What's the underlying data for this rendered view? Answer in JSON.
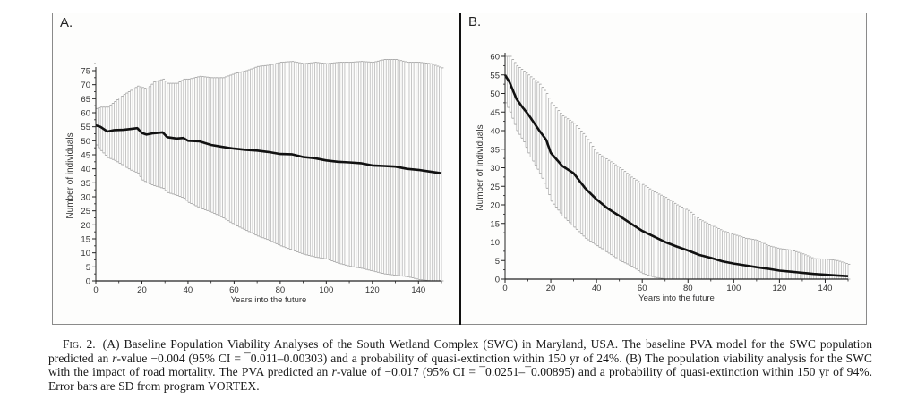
{
  "figure": {
    "panels": [
      "A.",
      "B."
    ],
    "caption": {
      "fig_label": "Fig. 2.",
      "text_parts": [
        "(A) Baseline Population Viability Analyses of the South Wetland Complex (SWC) in Maryland, USA. The baseline PVA model for the SWC population predicted an ",
        "r",
        "-value −0.004 (95% CI = ¯0.011–0.00303) and a probability of quasi-extinction within 150 yr of 24%. (B) The population viability analysis for the SWC with the impact of road mortality. The PVA predicted an ",
        "r",
        "-value of −0.017 (95% CI = ¯0.0251–¯0.00895) and a probability of quasi-extinction within 150 yr of 94%. Error bars are SD from program VORTEX."
      ]
    }
  },
  "chart_data": [
    {
      "type": "line",
      "panel": "A.",
      "title": "",
      "xlabel": "Years into the future",
      "ylabel": "Number of individuals",
      "xlim": [
        0,
        150
      ],
      "ylim": [
        0,
        79
      ],
      "xticks": [
        0,
        20,
        40,
        60,
        80,
        100,
        120,
        140
      ],
      "yticks": [
        0,
        5,
        10,
        15,
        20,
        25,
        30,
        35,
        40,
        45,
        50,
        55,
        60,
        65,
        70,
        75
      ],
      "grid": false,
      "error_bars": "SD",
      "series": [
        {
          "name": "mean",
          "x": [
            0,
            2,
            5,
            8,
            12,
            15,
            18,
            20,
            22,
            25,
            29,
            31,
            35,
            38,
            40,
            45,
            50,
            55,
            60,
            65,
            70,
            75,
            80,
            85,
            90,
            95,
            100,
            105,
            110,
            115,
            120,
            125,
            130,
            135,
            140,
            145,
            150
          ],
          "values": [
            55.5,
            55,
            53.3,
            53.8,
            53.9,
            54.2,
            54.5,
            52.8,
            52.2,
            52.7,
            53,
            51.3,
            50.8,
            51,
            50,
            49.8,
            48.5,
            47.8,
            47.2,
            46.8,
            46.5,
            46,
            45.3,
            45.2,
            44.2,
            43.8,
            43,
            42.5,
            42.3,
            42,
            41.2,
            41,
            40.8,
            40,
            39.6,
            39,
            38.4
          ]
        },
        {
          "name": "upper (mean + SD)",
          "x": [
            0,
            2,
            5,
            8,
            12,
            15,
            18,
            20,
            22,
            25,
            29,
            31,
            35,
            38,
            40,
            45,
            50,
            55,
            60,
            65,
            70,
            75,
            80,
            85,
            90,
            95,
            100,
            105,
            110,
            115,
            120,
            125,
            130,
            135,
            140,
            145,
            150
          ],
          "values": [
            61.5,
            62,
            62,
            64,
            66.5,
            68,
            69.5,
            69,
            68.5,
            71,
            72,
            70.5,
            70.5,
            72,
            72,
            73,
            72.5,
            72.5,
            74,
            75,
            76.5,
            77,
            78,
            78.3,
            77.5,
            78,
            77.5,
            78,
            78,
            78.3,
            78,
            79,
            79,
            78,
            78,
            77.5,
            76
          ]
        },
        {
          "name": "lower (mean - SD)",
          "x": [
            0,
            2,
            5,
            8,
            12,
            15,
            18,
            20,
            22,
            25,
            29,
            31,
            35,
            38,
            40,
            45,
            50,
            55,
            60,
            65,
            70,
            75,
            80,
            85,
            90,
            95,
            100,
            105,
            110,
            115,
            120,
            125,
            130,
            135,
            140,
            145,
            150
          ],
          "values": [
            48.5,
            46.5,
            44,
            43,
            41,
            39.5,
            38.5,
            36,
            35,
            34,
            33,
            31.5,
            30.5,
            29.5,
            28,
            26,
            24.5,
            22.5,
            20,
            18,
            16,
            14.5,
            12.5,
            11,
            9.5,
            8.5,
            7.8,
            6.3,
            5.2,
            4.5,
            3.5,
            2.5,
            2,
            1.5,
            0.5,
            0,
            0
          ]
        }
      ]
    },
    {
      "type": "line",
      "panel": "B.",
      "title": "",
      "xlabel": "Years into the future",
      "ylabel": "Number of individuals",
      "xlim": [
        0,
        150
      ],
      "ylim": [
        0,
        60
      ],
      "xticks": [
        0,
        20,
        40,
        60,
        80,
        100,
        120,
        140
      ],
      "yticks": [
        0,
        5,
        10,
        15,
        20,
        25,
        30,
        35,
        40,
        45,
        50,
        55,
        60
      ],
      "grid": false,
      "error_bars": "SD",
      "series": [
        {
          "name": "mean",
          "x": [
            0,
            2,
            5,
            8,
            10,
            15,
            18,
            20,
            25,
            30,
            35,
            40,
            45,
            50,
            55,
            60,
            65,
            70,
            75,
            80,
            85,
            90,
            95,
            100,
            105,
            110,
            115,
            120,
            125,
            130,
            135,
            140,
            145,
            150
          ],
          "values": [
            55,
            53,
            48.5,
            46,
            44.5,
            40,
            37.5,
            34,
            30.5,
            28.5,
            24.5,
            21.5,
            19,
            17,
            15,
            13,
            11.5,
            10,
            8.8,
            7.7,
            6.5,
            5.7,
            4.8,
            4.2,
            3.7,
            3.2,
            2.8,
            2.3,
            2,
            1.7,
            1.4,
            1.2,
            1,
            0.8
          ]
        },
        {
          "name": "upper (mean + SD)",
          "x": [
            0,
            2,
            5,
            8,
            10,
            15,
            18,
            20,
            25,
            30,
            35,
            40,
            45,
            50,
            55,
            60,
            65,
            70,
            75,
            80,
            85,
            90,
            95,
            100,
            105,
            110,
            115,
            120,
            125,
            130,
            135,
            140,
            145,
            150
          ],
          "values": [
            60,
            60,
            57.5,
            56,
            55,
            52.5,
            50,
            47.5,
            44,
            42,
            38.5,
            34,
            32,
            30,
            27.5,
            25.5,
            23.5,
            22,
            20,
            18.5,
            16,
            14.5,
            13,
            12,
            11,
            10.5,
            9,
            8.2,
            7.8,
            6.8,
            5.5,
            5.4,
            5,
            4
          ]
        },
        {
          "name": "lower (mean - SD)",
          "x": [
            0,
            2,
            5,
            8,
            10,
            15,
            18,
            20,
            25,
            30,
            35,
            40,
            45,
            50,
            55,
            60,
            65,
            70,
            75,
            80,
            85,
            90,
            95,
            100,
            105,
            110,
            115,
            120,
            125,
            130,
            135,
            140,
            145,
            150
          ],
          "values": [
            47.5,
            45,
            40,
            37,
            34,
            28.5,
            24.5,
            21,
            17,
            14,
            11,
            9,
            7,
            5,
            3.5,
            1.5,
            0.5,
            0,
            0,
            0,
            0,
            0,
            0,
            0,
            0,
            0,
            0,
            0,
            0,
            0,
            0,
            0,
            0,
            0
          ]
        }
      ]
    }
  ]
}
